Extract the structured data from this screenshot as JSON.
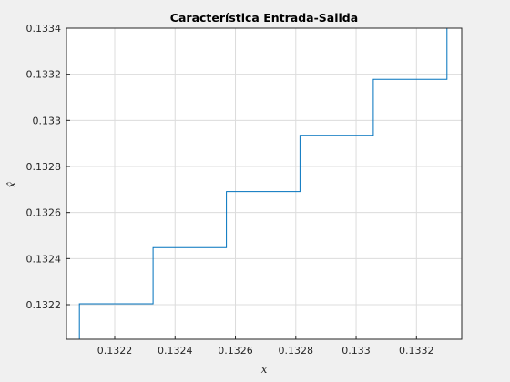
{
  "chart_data": {
    "type": "line",
    "title": "Característica Entrada-Salida",
    "xlabel": "x",
    "ylabel": "x̂",
    "xlim": [
      0.13204,
      0.13335
    ],
    "ylim": [
      0.13205,
      0.1334
    ],
    "grid": true,
    "xticks": [
      0.1322,
      0.1324,
      0.1326,
      0.1328,
      0.133,
      0.1332
    ],
    "xtick_labels": [
      "0.1322",
      "0.1324",
      "0.1326",
      "0.1328",
      "0.133",
      "0.1332"
    ],
    "yticks": [
      0.1322,
      0.1324,
      0.1326,
      0.1328,
      0.133,
      0.1332,
      0.1334
    ],
    "ytick_labels": [
      "0.1322",
      "0.1324",
      "0.1326",
      "0.1328",
      "0.133",
      "0.1332",
      "0.1334"
    ],
    "series": [
      {
        "color": "#0072bd",
        "x": [
          0.132083,
          0.132083,
          0.132327,
          0.132327,
          0.13257,
          0.13257,
          0.132814,
          0.132814,
          0.133057,
          0.133057,
          0.133301,
          0.133301
        ],
        "y": [
          0.13205,
          0.132204,
          0.132204,
          0.132448,
          0.132448,
          0.132691,
          0.132691,
          0.132935,
          0.132935,
          0.133178,
          0.133178,
          0.1334
        ]
      }
    ]
  }
}
